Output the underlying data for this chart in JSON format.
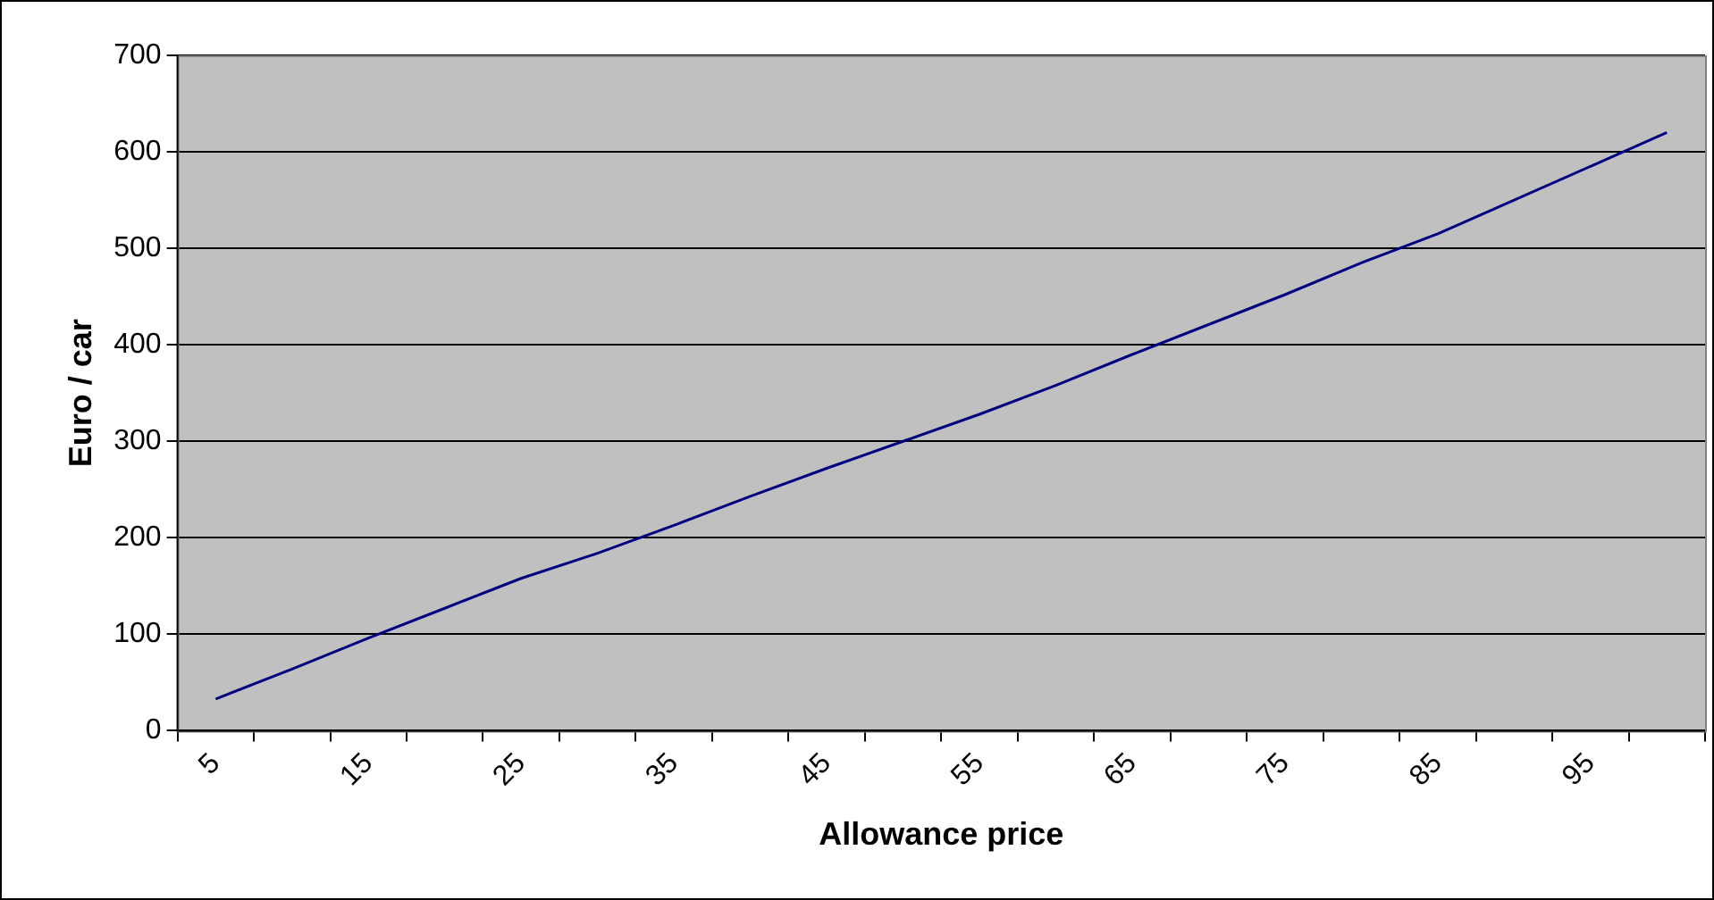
{
  "chart_data": {
    "type": "line",
    "xlabel": "Allowance price",
    "ylabel": "Euro / car",
    "categories": [
      "5",
      null,
      "15",
      null,
      "25",
      null,
      "35",
      null,
      "45",
      null,
      "55",
      null,
      "65",
      null,
      "75",
      null,
      "85",
      null,
      "95",
      null
    ],
    "series": [
      {
        "color": "#000080",
        "values": [
          33,
          64,
          96,
          127,
          158,
          184,
          213,
          243,
          272,
          300,
          328,
          358,
          390,
          421,
          452,
          485,
          515,
          550,
          585,
          620
        ]
      }
    ],
    "ylim": [
      0,
      700
    ],
    "yticks": [
      0,
      100,
      200,
      300,
      400,
      500,
      600,
      700
    ],
    "grid": "y",
    "legend": false,
    "marker": "none",
    "line_style": "solid"
  }
}
